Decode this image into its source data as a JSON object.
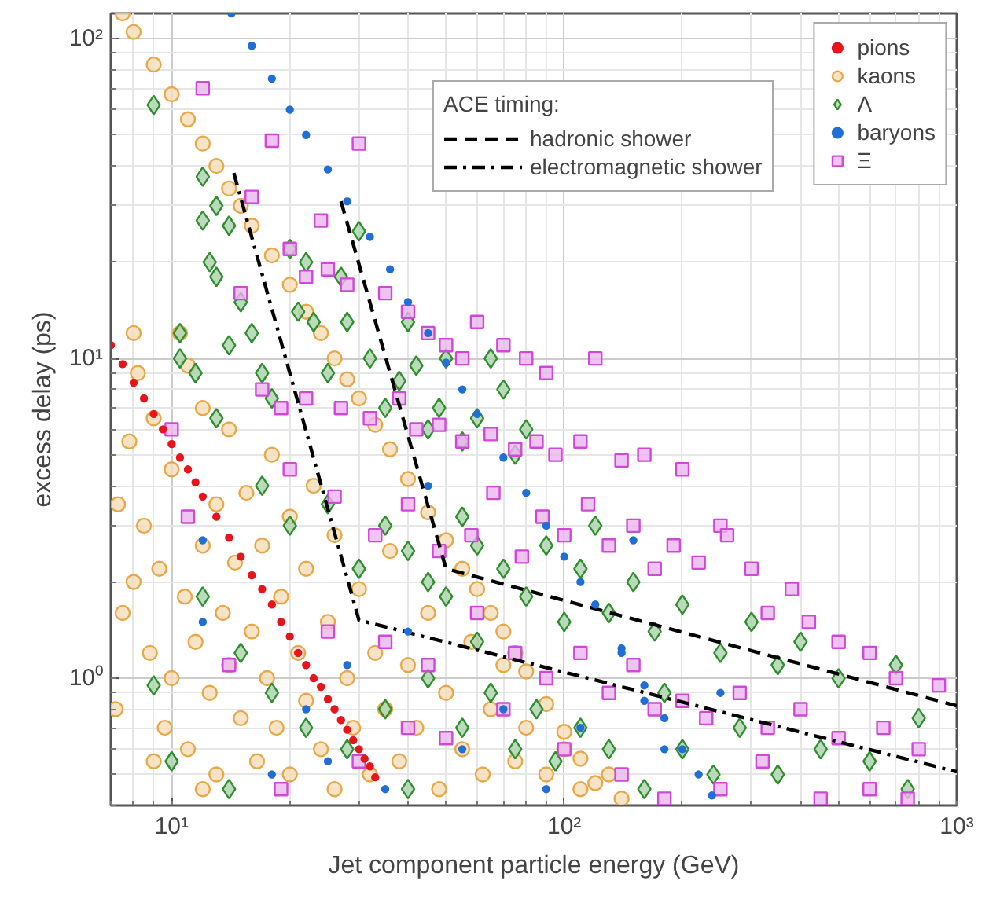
{
  "chart_data": {
    "type": "scatter",
    "xlabel": "Jet component particle energy (GeV)",
    "ylabel": "excess delay (ps)",
    "log": "xy",
    "grid": true,
    "legend": "top right",
    "legend_title": "ACE timing:",
    "xlim": [
      7,
      1000
    ],
    "ylim": [
      0.4,
      120
    ],
    "xticks": [
      {
        "value": 10,
        "label": "10¹"
      },
      {
        "value": 100,
        "label": "10²"
      },
      {
        "value": 1000,
        "label": "10³"
      }
    ],
    "yticks": [
      {
        "value": 1,
        "label": "10⁰"
      },
      {
        "value": 10,
        "label": "10¹"
      },
      {
        "value": 100,
        "label": "10²"
      }
    ],
    "series": [
      {
        "name": "pions",
        "color": "#e8141c",
        "marker": "dot",
        "x": [
          7,
          7.5,
          8,
          8.5,
          9,
          9.5,
          10,
          10.5,
          11,
          11.5,
          12,
          13,
          14,
          15,
          16,
          17,
          18,
          19,
          20,
          21,
          22,
          23,
          24,
          25,
          26,
          27,
          28,
          29,
          30,
          31,
          32,
          33
        ],
        "values": [
          11,
          9.6,
          8.4,
          7.5,
          6.7,
          6,
          5.4,
          4.9,
          4.5,
          4.1,
          3.7,
          3.2,
          2.75,
          2.4,
          2.1,
          1.9,
          1.7,
          1.5,
          1.35,
          1.2,
          1.1,
          1.0,
          0.94,
          0.86,
          0.8,
          0.74,
          0.69,
          0.64,
          0.6,
          0.56,
          0.53,
          0.49
        ]
      },
      {
        "name": "kaons",
        "color": "#e8a849",
        "marker": "circle",
        "x": [
          7.5,
          8,
          9,
          10,
          11,
          12,
          13,
          14,
          15,
          16,
          18,
          20,
          22,
          24,
          26,
          28,
          30,
          33,
          36,
          40,
          45,
          50,
          55,
          60,
          65,
          70,
          75,
          80,
          90,
          100,
          110,
          120,
          7.2,
          7.5,
          7.8,
          8,
          8.2,
          8.5,
          8.8,
          9,
          9.3,
          9.6,
          10,
          10,
          10.5,
          10.8,
          11,
          11.5,
          12,
          12,
          12.5,
          13,
          13,
          13.5,
          14,
          14,
          14.5,
          15,
          15.5,
          16,
          16.5,
          17,
          17.5,
          18,
          18.5,
          19,
          20,
          20,
          21,
          22,
          22,
          23,
          24,
          25,
          26,
          26,
          28,
          29,
          30,
          32,
          33,
          35,
          36,
          38,
          40,
          42,
          45,
          48,
          50,
          55,
          58,
          62,
          65,
          70,
          75,
          80,
          90,
          100,
          110,
          130,
          140,
          9,
          11,
          8,
          7.3,
          12
        ],
        "values": [
          120,
          105,
          83,
          67,
          56,
          47,
          40,
          34,
          30,
          26,
          21,
          17,
          14,
          12,
          10,
          8.6,
          7.5,
          6.2,
          5.2,
          4.2,
          3.3,
          2.7,
          2.2,
          1.9,
          1.6,
          1.4,
          1.2,
          1.05,
          0.83,
          0.68,
          0.56,
          0.47,
          0.8,
          1.6,
          5.5,
          12,
          9,
          3,
          1.2,
          0.55,
          2.2,
          0.7,
          1.0,
          4.5,
          12,
          1.8,
          0.6,
          1.3,
          7,
          2.6,
          0.9,
          3.5,
          0.5,
          1.6,
          6,
          1.1,
          2.3,
          0.75,
          3.8,
          1.4,
          0.55,
          2.6,
          1.0,
          5,
          0.7,
          1.8,
          0.5,
          3.2,
          1.2,
          0.85,
          2.2,
          4,
          0.6,
          1.5,
          0.45,
          2.8,
          1.0,
          0.7,
          1.9,
          0.5,
          1.2,
          0.8,
          2.5,
          0.55,
          1.1,
          0.7,
          1.6,
          0.45,
          0.9,
          0.6,
          1.3,
          0.5,
          0.8,
          1.1,
          0.55,
          0.7,
          0.5,
          0.6,
          0.45,
          0.5,
          0.42,
          6.5,
          9.5,
          2,
          3.5,
          0.45
        ]
      },
      {
        "name": "Λ",
        "color": "#2f8f2f",
        "marker": "diamond",
        "x": [
          9,
          12,
          13,
          12,
          14,
          12.5,
          13,
          10.5,
          10.5,
          11.5,
          13,
          14,
          15,
          16,
          17,
          18,
          20,
          22,
          21,
          23,
          25,
          27,
          28,
          30,
          32,
          35,
          38,
          40,
          42,
          45,
          48,
          50,
          55,
          60,
          65,
          70,
          75,
          80,
          17,
          20,
          25,
          30,
          35,
          40,
          45,
          50,
          55,
          60,
          70,
          80,
          90,
          100,
          110,
          120,
          130,
          150,
          170,
          200,
          250,
          300,
          350,
          400,
          500,
          700,
          800,
          12,
          15,
          18,
          22,
          28,
          35,
          45,
          55,
          65,
          75,
          85,
          95,
          110,
          130,
          160,
          200,
          240,
          280,
          350,
          450,
          600,
          750,
          10,
          9,
          14,
          40,
          60,
          180
        ],
        "values": [
          62,
          37,
          30,
          27,
          26,
          20,
          18,
          12,
          10,
          9,
          6.5,
          11,
          15,
          12,
          9,
          7.5,
          22,
          20,
          14,
          13,
          9,
          18,
          13,
          25,
          10,
          7,
          8.5,
          13,
          9.5,
          6,
          7,
          10,
          5.5,
          6.5,
          10,
          8,
          5,
          6,
          4,
          3,
          3.5,
          2.2,
          3,
          2.5,
          2,
          1.8,
          3.2,
          2.6,
          2.2,
          1.8,
          2.6,
          1.5,
          2.2,
          3,
          1.6,
          2,
          1.4,
          1.7,
          1.2,
          1.5,
          1.1,
          1.3,
          1.0,
          1.1,
          0.75,
          1.8,
          1.2,
          0.9,
          0.7,
          0.6,
          0.8,
          1.0,
          0.7,
          0.9,
          0.6,
          0.8,
          0.55,
          0.7,
          0.6,
          0.45,
          0.6,
          0.5,
          0.7,
          0.5,
          0.6,
          0.55,
          0.45,
          0.55,
          0.95,
          0.45,
          0.45,
          1.3,
          0.9
        ]
      },
      {
        "name": "baryons",
        "color": "#1f6fd6",
        "marker": "dot",
        "x": [
          14.2,
          16,
          18,
          20,
          22,
          25,
          28,
          32,
          36,
          40,
          45,
          50,
          55,
          60,
          70,
          80,
          90,
          100,
          110,
          120,
          140,
          160,
          180,
          200,
          220,
          238,
          12,
          12,
          18,
          22,
          25,
          28,
          35,
          40,
          45,
          55,
          70,
          90,
          110,
          140,
          160,
          180,
          150,
          250
        ],
        "values": [
          120,
          95,
          75,
          60,
          50,
          39,
          31,
          24,
          19,
          15,
          12,
          9.7,
          8,
          6.7,
          4.9,
          3.8,
          3.0,
          2.4,
          2.0,
          1.7,
          1.24,
          0.95,
          0.75,
          0.6,
          0.5,
          0.43,
          2.7,
          1.5,
          0.5,
          0.8,
          0.55,
          1.1,
          0.45,
          1.4,
          4,
          0.6,
          0.8,
          0.45,
          0.7,
          1.2,
          0.85,
          0.6,
          2.7,
          0.9
        ]
      },
      {
        "name": "Ξ",
        "color": "#d048d8",
        "marker": "square",
        "x": [
          12,
          18,
          30,
          16,
          24,
          20,
          25,
          15,
          22,
          28,
          35,
          40,
          45,
          50,
          55,
          60,
          70,
          80,
          90,
          120,
          17,
          19,
          22,
          27,
          32,
          38,
          42,
          48,
          55,
          65,
          75,
          85,
          95,
          110,
          140,
          160,
          200,
          250,
          10,
          11,
          14,
          20,
          26,
          33,
          40,
          48,
          58,
          66,
          78,
          88,
          100,
          115,
          130,
          150,
          170,
          190,
          220,
          260,
          300,
          330,
          380,
          420,
          500,
          600,
          700,
          900,
          25,
          35,
          45,
          60,
          75,
          90,
          110,
          130,
          150,
          170,
          200,
          230,
          280,
          330,
          400,
          500,
          650,
          800,
          30,
          50,
          70,
          100,
          140,
          180,
          250,
          320,
          450,
          600,
          750,
          19,
          40
        ],
        "values": [
          70,
          48,
          47,
          32,
          27,
          22,
          19,
          16,
          18,
          17,
          16,
          14,
          12,
          11,
          10,
          13,
          11,
          10,
          9,
          10,
          8,
          7,
          7.5,
          7,
          6.5,
          7.5,
          6,
          6.2,
          5.5,
          5.8,
          5.2,
          5.5,
          5,
          5.5,
          4.8,
          5,
          4.5,
          3,
          6,
          3.2,
          1.1,
          4.5,
          3.7,
          2.8,
          3.5,
          2.5,
          2.8,
          3.8,
          2.4,
          3.2,
          2.8,
          3.5,
          2.6,
          3,
          2.2,
          2.6,
          2.3,
          2.8,
          2.2,
          1.6,
          1.9,
          1.5,
          1.3,
          1.2,
          1.0,
          0.95,
          1.4,
          1.3,
          1.1,
          1.6,
          1.2,
          1.0,
          1.2,
          0.9,
          1.1,
          0.8,
          0.85,
          0.75,
          0.9,
          0.7,
          0.8,
          0.65,
          0.7,
          0.6,
          0.55,
          0.65,
          0.8,
          0.6,
          0.5,
          0.42,
          0.45,
          0.55,
          0.42,
          0.45,
          0.42,
          0.45,
          0.7
        ]
      },
      {
        "name": "hadronic shower",
        "type": "line",
        "color": "#000000",
        "line_style": "dashed",
        "x": [
          27,
          50,
          1000
        ],
        "values": [
          31,
          2.2,
          0.82
        ]
      },
      {
        "name": "electromagnetic shower",
        "type": "line",
        "color": "#000000",
        "line_style": "dashdot",
        "x": [
          14.4,
          30,
          1000
        ],
        "values": [
          38,
          1.52,
          0.51
        ]
      }
    ]
  }
}
